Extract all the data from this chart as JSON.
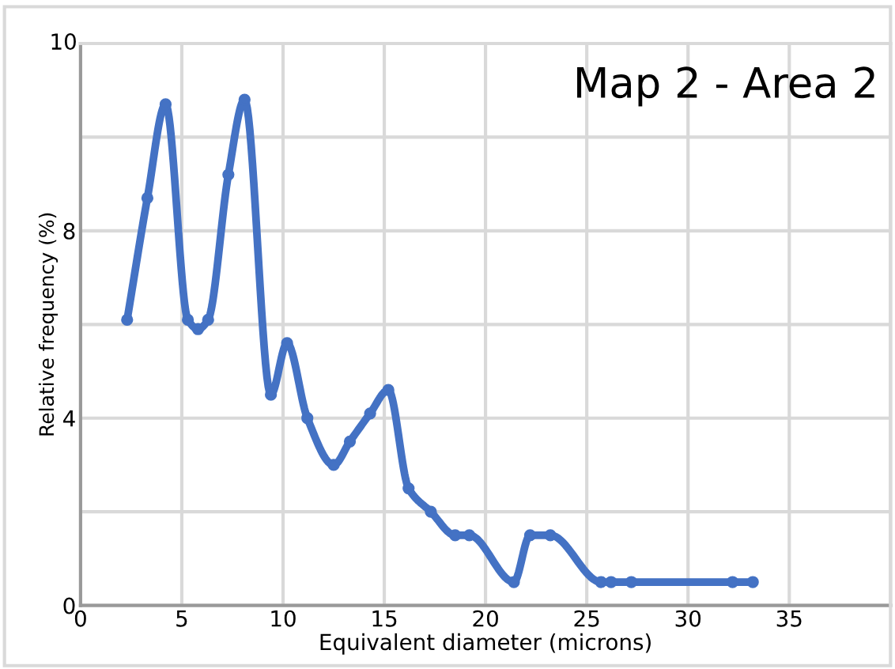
{
  "chart_data": {
    "type": "line",
    "title": "Map 2 - Area 2",
    "xlabel": "Equivalent diameter (microns)",
    "ylabel": "Relative frequency (%)",
    "x": [
      2.3,
      3.3,
      4.2,
      5.3,
      5.8,
      6.3,
      7.3,
      8.1,
      9.4,
      10.2,
      11.2,
      12.5,
      13.3,
      14.3,
      15.2,
      16.2,
      17.3,
      18.5,
      19.2,
      21.4,
      22.2,
      23.2,
      25.7,
      26.2,
      27.2,
      32.2,
      33.2
    ],
    "series": [
      {
        "color": "#4472c4",
        "values": [
          6.1,
          8.7,
          10.7,
          6.1,
          5.9,
          6.1,
          9.2,
          10.8,
          4.5,
          5.6,
          4.0,
          3.0,
          3.5,
          4.1,
          4.6,
          2.5,
          2.0,
          1.5,
          1.5,
          0.5,
          1.5,
          1.5,
          0.5,
          0.5,
          0.5,
          0.5,
          0.5
        ]
      }
    ],
    "xlim": [
      0,
      40
    ],
    "xticks": [
      0,
      5,
      10,
      15,
      20,
      25,
      30,
      35
    ],
    "ylim": [
      0,
      12
    ],
    "yticks": [
      0,
      {
        "value": 2,
        "label": null
      },
      4,
      {
        "value": 6,
        "label": null
      },
      8,
      {
        "value": 10,
        "label": null
      },
      {
        "value": 12,
        "label": null
      }
    ],
    "annotations": [
      "10"
    ],
    "grid": true,
    "marker": "circle",
    "line_style": "solid"
  }
}
